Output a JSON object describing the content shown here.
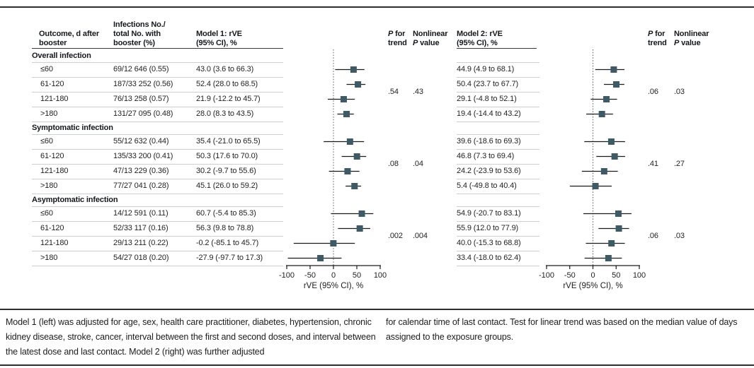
{
  "columns": {
    "outcome": {
      "l1": "Outcome, d after",
      "l2": "booster"
    },
    "infections": {
      "l1": "Infections No./",
      "l2": "total No. with",
      "l3": "booster (%)"
    },
    "model1": {
      "l1": "Model 1: rVE",
      "l2": "(95% CI), %"
    },
    "model2": {
      "l1": "Model 2: rVE",
      "l2": "(95% CI), %"
    },
    "p_trend": {
      "italic": "P",
      "rest": " for",
      "l2": "trend"
    },
    "nonlinear": {
      "l1": "Nonlinear",
      "italic": "P",
      "rest": " value"
    }
  },
  "chart_data": {
    "type": "forest",
    "panels": [
      "Model 1 (left)",
      "Model 2 (right)"
    ],
    "xlabel": "rVE (95% CI), %",
    "xlim": [
      -100,
      100
    ],
    "xticks": [
      -100,
      -50,
      0,
      50,
      100
    ],
    "reference_line": 0,
    "groups": [
      {
        "label": "Overall infection",
        "rows": [
          {
            "outcome": "≤60",
            "infections": "69/12 646 (0.55)",
            "model1": {
              "label": "43.0 (3.6 to 66.3)",
              "est": 43.0,
              "lo": 3.6,
              "hi": 66.3
            },
            "model2": {
              "label": "44.9 (4.9 to 68.1)",
              "est": 44.9,
              "lo": 4.9,
              "hi": 68.1
            }
          },
          {
            "outcome": "61-120",
            "infections": "187/33 252 (0.56)",
            "model1": {
              "label": "52.4 (28.0 to 68.5)",
              "est": 52.4,
              "lo": 28.0,
              "hi": 68.5
            },
            "model2": {
              "label": "50.4 (23.7 to 67.7)",
              "est": 50.4,
              "lo": 23.7,
              "hi": 67.7
            }
          },
          {
            "outcome": "121-180",
            "infections": "76/13 258 (0.57)",
            "model1": {
              "label": "21.9 (-12.2 to 45.7)",
              "est": 21.9,
              "lo": -12.2,
              "hi": 45.7
            },
            "model2": {
              "label": "29.1 (-4.8 to 52.1)",
              "est": 29.1,
              "lo": -4.8,
              "hi": 52.1
            }
          },
          {
            "outcome": ">180",
            "infections": "131/27 095 (0.48)",
            "model1": {
              "label": "28.0 (8.3 to 43.5)",
              "est": 28.0,
              "lo": 8.3,
              "hi": 43.5
            },
            "model2": {
              "label": "19.4 (-14.4 to 43.2)",
              "est": 19.4,
              "lo": -14.4,
              "hi": 43.2
            }
          }
        ],
        "model1_p": {
          "trend": ".54",
          "nonlinear": ".43"
        },
        "model2_p": {
          "trend": ".06",
          "nonlinear": ".03"
        }
      },
      {
        "label": "Symptomatic infection",
        "rows": [
          {
            "outcome": "≤60",
            "infections": "55/12 632 (0.44)",
            "model1": {
              "label": "35.4 (-21.0 to 65.5)",
              "est": 35.4,
              "lo": -21.0,
              "hi": 65.5
            },
            "model2": {
              "label": "39.6 (-18.6 to 69.3)",
              "est": 39.6,
              "lo": -18.6,
              "hi": 69.3
            }
          },
          {
            "outcome": "61-120",
            "infections": "135/33 200 (0.41)",
            "model1": {
              "label": "50.3 (17.6 to 70.0)",
              "est": 50.3,
              "lo": 17.6,
              "hi": 70.0
            },
            "model2": {
              "label": "46.8 (7.3 to 69.4)",
              "est": 46.8,
              "lo": 7.3,
              "hi": 69.4
            }
          },
          {
            "outcome": "121-180",
            "infections": "47/13 229 (0.36)",
            "model1": {
              "label": "30.2 (-9.7 to 55.6)",
              "est": 30.2,
              "lo": -9.7,
              "hi": 55.6
            },
            "model2": {
              "label": "24.2 (-23.9 to 53.6)",
              "est": 24.2,
              "lo": -23.9,
              "hi": 53.6
            }
          },
          {
            "outcome": ">180",
            "infections": "77/27 041 (0.28)",
            "model1": {
              "label": "45.1 (26.0 to 59.2)",
              "est": 45.1,
              "lo": 26.0,
              "hi": 59.2
            },
            "model2": {
              "label": "5.4 (-49.8 to 40.4)",
              "est": 5.4,
              "lo": -49.8,
              "hi": 40.4
            }
          }
        ],
        "model1_p": {
          "trend": ".08",
          "nonlinear": ".04"
        },
        "model2_p": {
          "trend": ".41",
          "nonlinear": ".27"
        }
      },
      {
        "label": "Asymptomatic infection",
        "rows": [
          {
            "outcome": "≤60",
            "infections": "14/12 591 (0.11)",
            "model1": {
              "label": "60.7 (-5.4 to 85.3)",
              "est": 60.7,
              "lo": -5.4,
              "hi": 85.3
            },
            "model2": {
              "label": "54.9 (-20.7 to 83.1)",
              "est": 54.9,
              "lo": -20.7,
              "hi": 83.1
            }
          },
          {
            "outcome": "61-120",
            "infections": "52/33 117 (0.16)",
            "model1": {
              "label": "56.3 (9.8 to 78.8)",
              "est": 56.3,
              "lo": 9.8,
              "hi": 78.8
            },
            "model2": {
              "label": "55.9 (12.0 to 77.9)",
              "est": 55.9,
              "lo": 12.0,
              "hi": 77.9
            }
          },
          {
            "outcome": "121-180",
            "infections": "29/13 211 (0.22)",
            "model1": {
              "label": "-0.2 (-85.1 to 45.7)",
              "est": -0.2,
              "lo": -85.1,
              "hi": 45.7
            },
            "model2": {
              "label": "40.0 (-15.3 to 68.8)",
              "est": 40.0,
              "lo": -15.3,
              "hi": 68.8
            }
          },
          {
            "outcome": ">180",
            "infections": "54/27 018 (0.20)",
            "model1": {
              "label": "-27.9 (-97.7 to 17.3)",
              "est": -27.9,
              "lo": -97.7,
              "hi": 17.3
            },
            "model2": {
              "label": "33.4 (-18.0 to 62.4)",
              "est": 33.4,
              "lo": -18.0,
              "hi": 62.4
            }
          }
        ],
        "model1_p": {
          "trend": ".002",
          "nonlinear": ".004"
        },
        "model2_p": {
          "trend": ".06",
          "nonlinear": ".03"
        }
      }
    ]
  },
  "footnote": {
    "left": "Model 1 (left) was adjusted for age, sex, health care practitioner, diabetes, hypertension, chronic kidney disease, stroke, cancer, interval between the first and second doses, and interval between the latest dose and last contact. Model 2 (right) was further adjusted",
    "right": "for calendar time of last contact. Test for linear trend was based on the median value of days assigned to the exposure groups."
  },
  "colors": {
    "marker": "#3e5a64",
    "ci_line": "#1a1a1a",
    "separator": "#cfcfcf",
    "dark_rule": "#2e2e2e",
    "zero_line": "#5a5a5a"
  }
}
